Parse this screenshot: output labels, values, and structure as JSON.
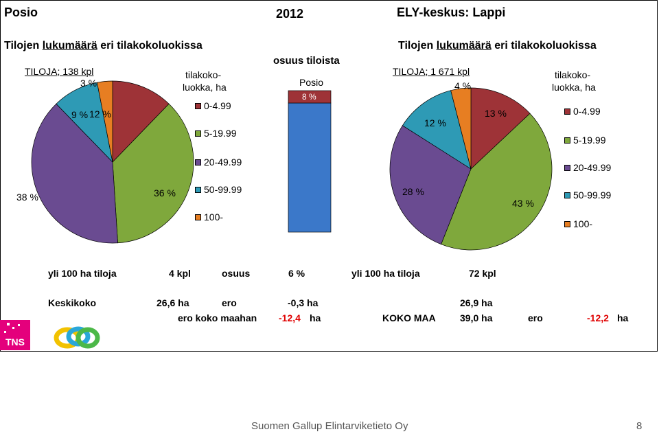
{
  "header": {
    "left": "Posio",
    "center": "2012",
    "right": "ELY-keskus: Lappi"
  },
  "left_panel": {
    "title_pre": "Tilojen ",
    "title_ul": "lukumäärä",
    "title_post": " eri tilakokoluokissa",
    "subtitle": "TILOJA; 138 kpl",
    "legend_title_1": "tilakoko-",
    "legend_title_2": "luokka, ha"
  },
  "right_panel": {
    "title_pre": "Tilojen ",
    "title_ul": "lukumäärä",
    "title_post": " eri tilakokoluokissa",
    "subtitle": "TILOJA; 1 671 kpl",
    "legend_title_1": "tilakoko-",
    "legend_title_2": "luokka, ha"
  },
  "middle": {
    "title": "osuus tiloista",
    "sublabel": "Posio",
    "bar_label": "8 %"
  },
  "legend": [
    "0-4.99",
    "5-19.99",
    "20-49.99",
    "50-99.99",
    "100-"
  ],
  "colors": {
    "c0_4": "#9e3337",
    "c5_19": "#7fa83c",
    "c20_49": "#6a4b91",
    "c50_99": "#2e9ab5",
    "c100": "#e77e22",
    "blue": "#3b78c9"
  },
  "chart_data": [
    {
      "type": "pie",
      "title": "Tilojen lukumäärä eri tilakokoluokissa",
      "subtitle": "TILOJA; 138 kpl",
      "categories": [
        "0-4.99",
        "5-19.99",
        "20-49.99",
        "50-99.99",
        "100-"
      ],
      "values": [
        12,
        36,
        38,
        9,
        3
      ],
      "labels": [
        "12 %",
        "36 %",
        "38 %",
        "9 %",
        "3 %"
      ]
    },
    {
      "type": "bar",
      "title": "osuus tiloista",
      "categories": [
        "Posio"
      ],
      "values": [
        8
      ],
      "labels": [
        "8 %"
      ],
      "ylim": [
        0,
        100
      ]
    },
    {
      "type": "pie",
      "title": "Tilojen lukumäärä eri tilakokoluokissa",
      "subtitle": "TILOJA; 1 671 kpl",
      "categories": [
        "0-4.99",
        "5-19.99",
        "20-49.99",
        "50-99.99",
        "100-"
      ],
      "values": [
        13,
        43,
        28,
        12,
        4
      ],
      "labels": [
        "13 %",
        "43 %",
        "28 %",
        "12 %",
        "4 %"
      ]
    }
  ],
  "stats": {
    "yli_label": "yli 100 ha tiloja",
    "yli_left_value": "4 kpl",
    "osuus_label": "osuus",
    "osuus_value": "6 %",
    "yli_right_label": "yli 100 ha tiloja",
    "yli_right_value": "72 kpl",
    "keskikoko_label": "Keskikoko",
    "keskikoko_value": "26,6 ha",
    "ero_label": "ero",
    "ero_value": "-0,3 ha",
    "right_keskikoko": "26,9 ha",
    "ero_koko_label": "ero koko maahan",
    "ero_koko_value": "-12,4",
    "ha1": "ha",
    "koko_maa_label": "KOKO MAA",
    "koko_maa_value": "39,0 ha",
    "ero2_label": "ero",
    "ero2_value": "-12,2",
    "ha2": "ha"
  },
  "logo_text": "TNS",
  "footer": {
    "text": "Suomen Gallup Elintarviketieto Oy",
    "page": "8"
  }
}
